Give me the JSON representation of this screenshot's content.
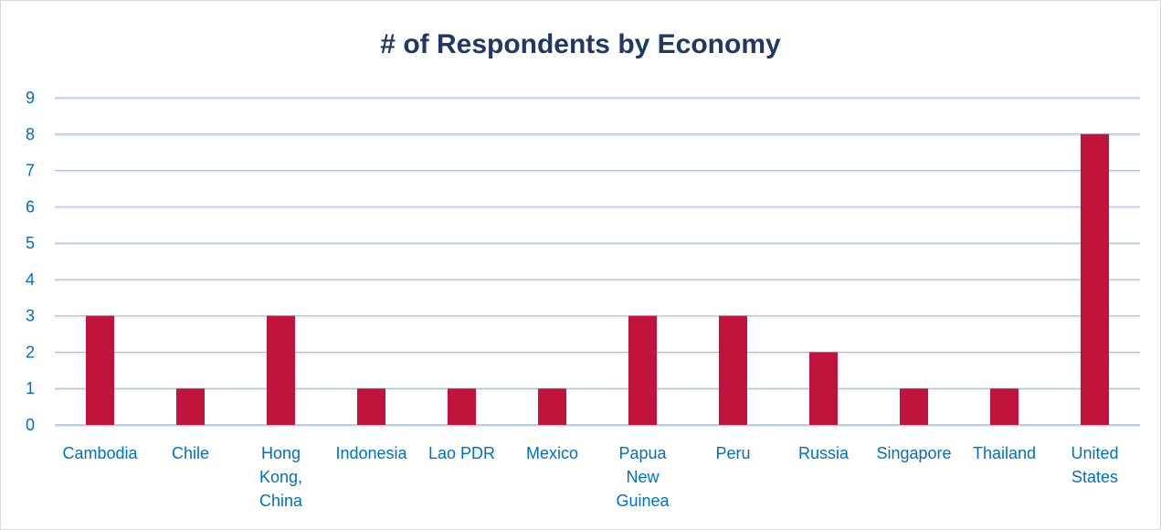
{
  "chart_data": {
    "type": "bar",
    "title": "# of Respondents by Economy",
    "xlabel": "",
    "ylabel": "",
    "categories": [
      [
        "Cambodia"
      ],
      [
        "Chile"
      ],
      [
        "Hong",
        "Kong,",
        "China"
      ],
      [
        "Indonesia"
      ],
      [
        "Lao PDR"
      ],
      [
        "Mexico"
      ],
      [
        "Papua",
        "New",
        "Guinea"
      ],
      [
        "Peru"
      ],
      [
        "Russia"
      ],
      [
        "Singapore"
      ],
      [
        "Thailand"
      ],
      [
        "United",
        "States"
      ]
    ],
    "values": [
      3,
      1,
      3,
      1,
      1,
      1,
      3,
      3,
      2,
      1,
      1,
      8
    ],
    "ylim": [
      0,
      9
    ],
    "yticks": [
      "0",
      "1",
      "2",
      "3",
      "4",
      "5",
      "6",
      "7",
      "8",
      "9"
    ],
    "grid": true,
    "colors": {
      "bar": "#c0143c",
      "grid": "#a9bdd8",
      "text": "#0070c0",
      "title": "#1f3864"
    }
  }
}
